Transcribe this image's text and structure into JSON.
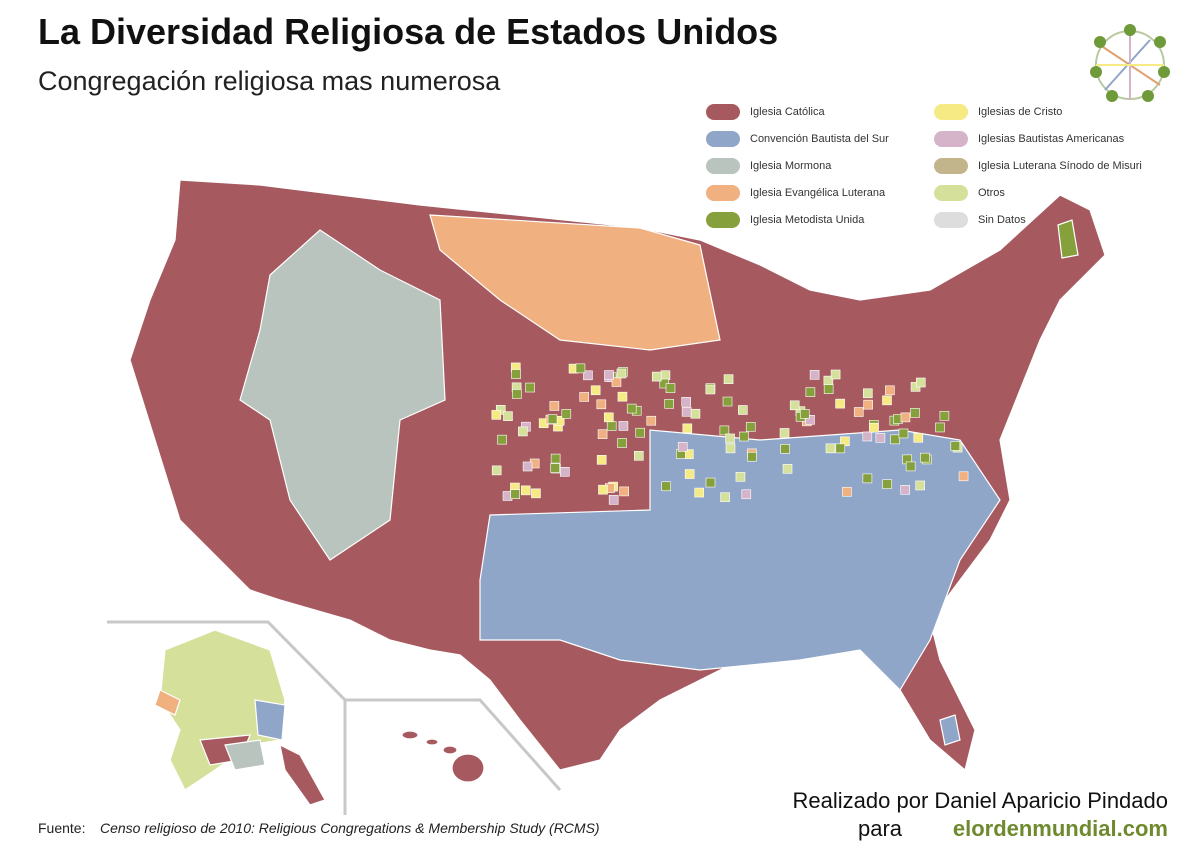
{
  "header": {
    "title": "La Diversidad Religiosa de Estados Unidos",
    "subtitle": "Congregación religiosa mas numerosa"
  },
  "legend": {
    "items": [
      {
        "label": "Iglesia Católica",
        "color": "#a65a5f"
      },
      {
        "label": "Convención Bautista del Sur",
        "color": "#8fa6c9"
      },
      {
        "label": "Iglesia Mormona",
        "color": "#b8c4bd"
      },
      {
        "label": "Iglesia Evangélica Luterana",
        "color": "#f0b07f"
      },
      {
        "label": "Iglesia Metodista Unida",
        "color": "#86a13b"
      },
      {
        "label": "Iglesias de Cristo",
        "color": "#f6ea84"
      },
      {
        "label": "Iglesias Bautistas Americanas",
        "color": "#d5b4ca"
      },
      {
        "label": "Iglesia Luterana Sínodo de Misuri",
        "color": "#c3b58b"
      },
      {
        "label": "Otros",
        "color": "#d5e19b"
      },
      {
        "label": "Sin Datos",
        "color": "#dddddd"
      }
    ]
  },
  "credit": {
    "line1": "Realizado por Daniel Aparicio Pindado",
    "para": "para",
    "site": "elordenmundial.com"
  },
  "source": {
    "label": "Fuente:",
    "text": "Censo religioso de 2010: Religious Congregations & Membership Study (RCMS)"
  }
}
